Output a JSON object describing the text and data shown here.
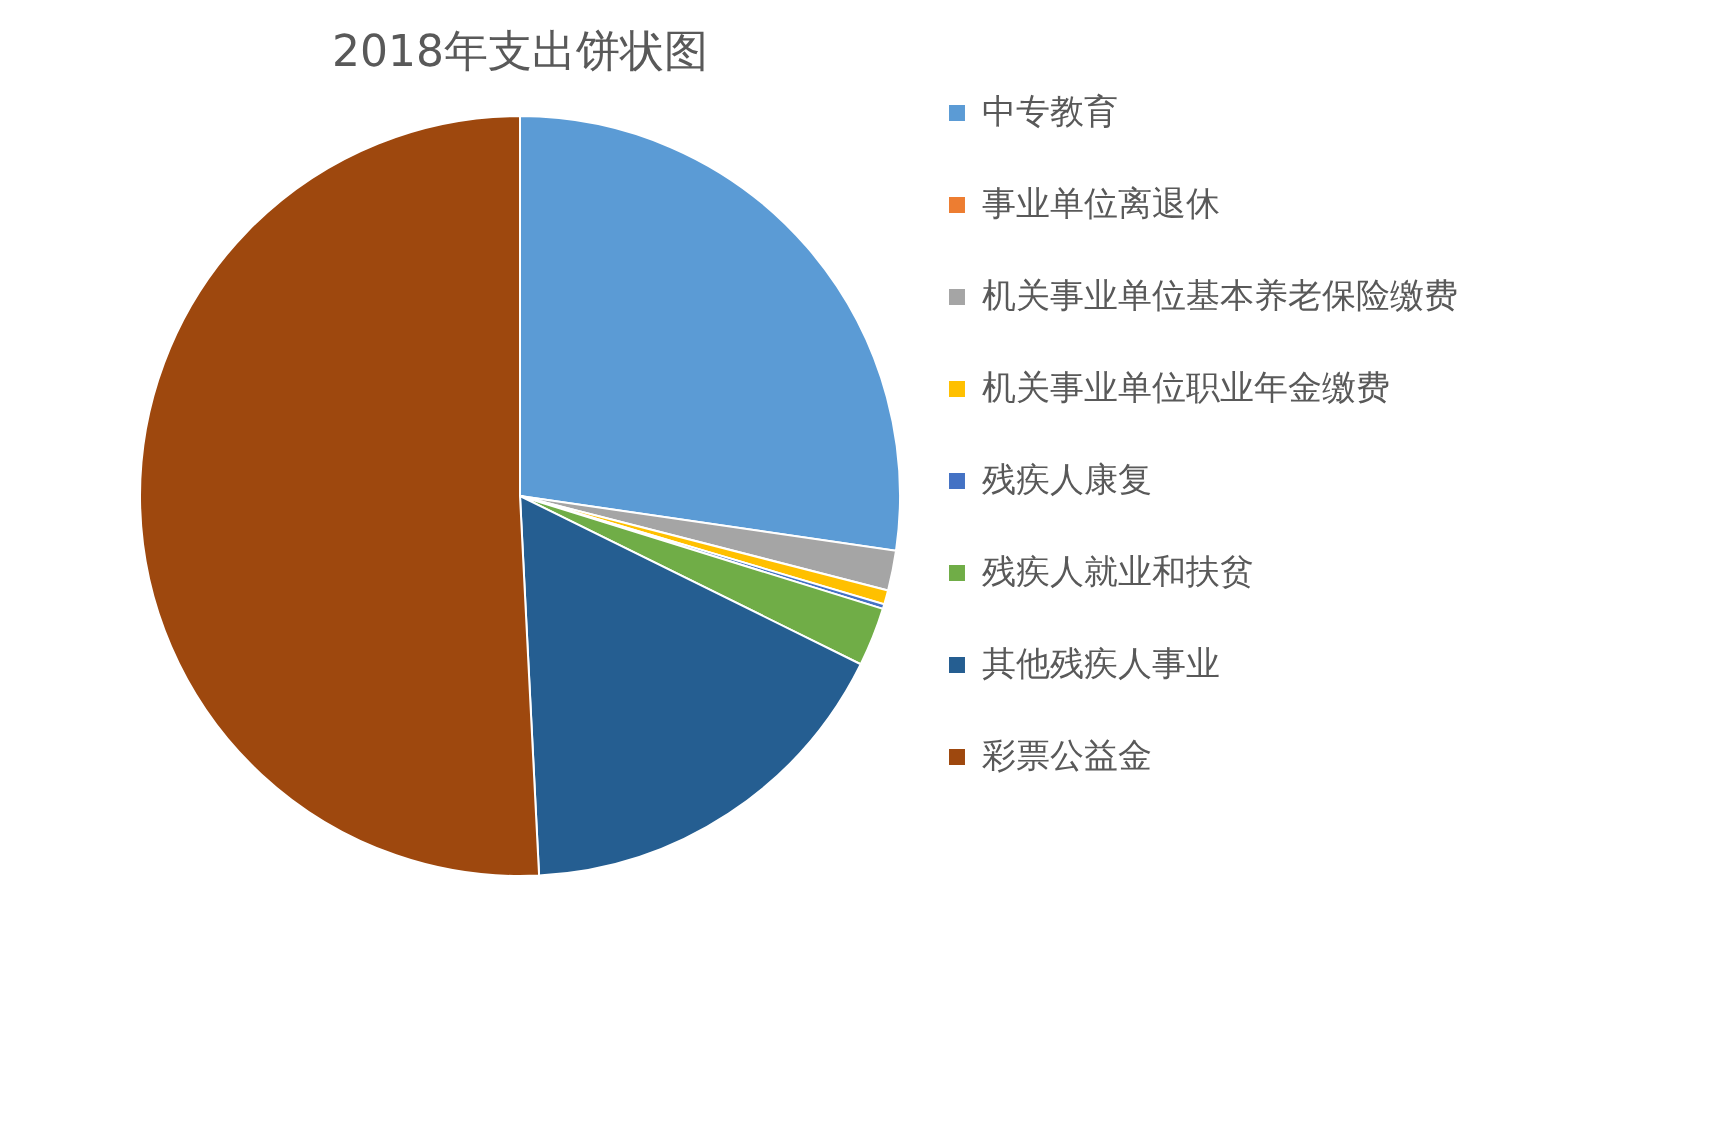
{
  "chart_data": {
    "type": "pie",
    "title": "2018年支出饼状图",
    "legend": "right",
    "categories": [
      "中专教育",
      "事业单位离退休",
      "机关事业单位基本养老保险缴费",
      "机关事业单位职业年金缴费",
      "残疾人康复",
      "残疾人就业和扶贫",
      "其他残疾人事业",
      "彩票公益金"
    ],
    "values": [
      27.3,
      0,
      1.7,
      0.6,
      0.2,
      2.5,
      16.9,
      50.8
    ],
    "colors": [
      "#5b9bd5",
      "#ed7d31",
      "#a5a5a5",
      "#ffc000",
      "#4472c4",
      "#70ad47",
      "#255e91",
      "#9e480e"
    ]
  }
}
